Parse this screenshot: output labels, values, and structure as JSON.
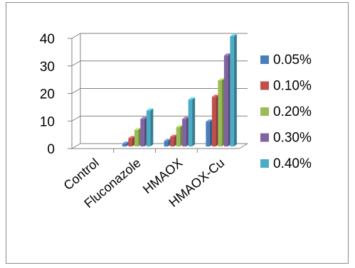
{
  "chart_data": {
    "type": "bar",
    "categories": [
      "Control",
      "Fluconazole",
      "HMAOX",
      "HMAOX-Cu"
    ],
    "series": [
      {
        "name": "0.05%",
        "color": "#4a7ebb",
        "values": [
          0,
          1,
          2,
          9
        ]
      },
      {
        "name": "0.10%",
        "color": "#c0504d",
        "values": [
          0,
          3,
          3.5,
          18
        ]
      },
      {
        "name": "0.20%",
        "color": "#9bbb59",
        "values": [
          0,
          6,
          7,
          24
        ]
      },
      {
        "name": "0.30%",
        "color": "#8064a2",
        "values": [
          0,
          10,
          10,
          33
        ]
      },
      {
        "name": "0.40%",
        "color": "#4bacc6",
        "values": [
          0,
          13,
          17,
          40
        ]
      }
    ],
    "y_ticks": [
      "0",
      "10",
      "20",
      "30",
      "40"
    ],
    "ylim": [
      0,
      40
    ],
    "legend_position": "right",
    "grid": true,
    "style": "3d-clustered"
  }
}
